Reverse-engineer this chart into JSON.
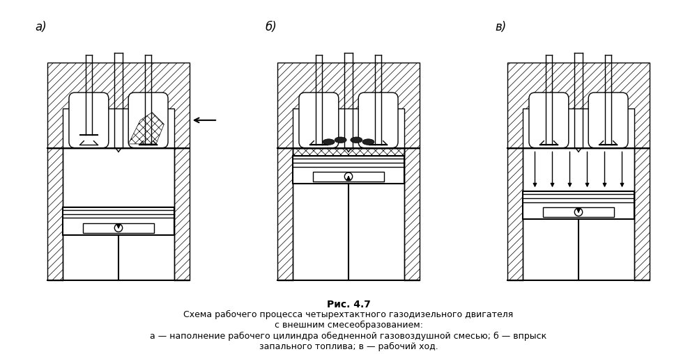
{
  "title": "Рис. 4.7",
  "subtitle": "Схема рабочего процесса четырехтактного газодизельного двигателя\nс внешним смесеобразованием:",
  "caption": "а — наполнение рабочего цилиндра обедненной газовоздушной смесью; б — впрыск\nзапального топлива; в — рабочий ход.",
  "labels": [
    "а)",
    "б)",
    "в)"
  ],
  "bg_color": "#ffffff",
  "lw": 1.0,
  "lw2": 1.5,
  "title_fontsize": 10,
  "label_fontsize": 12,
  "caption_fontsize": 9
}
